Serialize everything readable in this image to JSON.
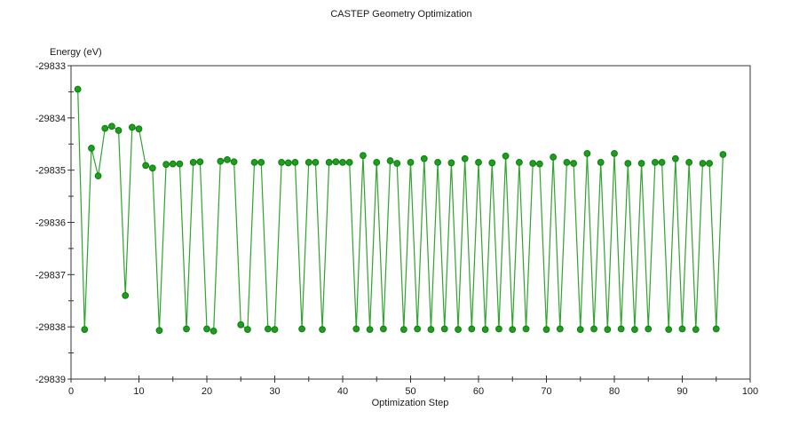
{
  "chart": {
    "title": "CASTEP Geometry Optimization",
    "y_axis_label": "Energy (eV)",
    "x_axis_label": "Optimization Step"
  },
  "colors": {
    "background": "#ffffff",
    "axis": "#333333",
    "text": "#1a1a1a",
    "line": "#2fa42f",
    "marker_fill": "#1e9e1e",
    "marker_stroke": "#0f7e0f"
  },
  "chart_data": {
    "type": "line",
    "title": "CASTEP Geometry Optimization",
    "xlabel": "Optimization Step",
    "ylabel": "Energy (eV)",
    "xlim": [
      0,
      100
    ],
    "ylim": [
      -29839,
      -29833
    ],
    "x_ticks": [
      0,
      10,
      20,
      30,
      40,
      50,
      60,
      70,
      80,
      90,
      100
    ],
    "y_ticks": [
      -29833,
      -29834,
      -29835,
      -29836,
      -29837,
      -29838,
      -29839
    ],
    "x_minor_ticks": [
      5,
      15,
      25,
      35,
      45,
      55,
      65,
      75,
      85,
      95
    ],
    "y_minor_ticks": [
      -29833.5,
      -29834.5,
      -29835.5,
      -29836.5,
      -29837.5,
      -29838.5
    ],
    "grid": false,
    "legend": "none",
    "marker": "circle",
    "series": [
      {
        "name": "Energy",
        "x": [
          1,
          2,
          3,
          4,
          5,
          6,
          7,
          8,
          9,
          10,
          11,
          12,
          13,
          14,
          15,
          16,
          17,
          18,
          19,
          20,
          21,
          22,
          23,
          24,
          25,
          26,
          27,
          28,
          29,
          30,
          31,
          32,
          33,
          34,
          35,
          36,
          37,
          38,
          39,
          40,
          41,
          42,
          43,
          44,
          45,
          46,
          47,
          48,
          49,
          50,
          51,
          52,
          53,
          54,
          55,
          56,
          57,
          58,
          59,
          60,
          61,
          62,
          63,
          64,
          65,
          66,
          67,
          68,
          69,
          70,
          71,
          72,
          73,
          74,
          75,
          76,
          77,
          78,
          79,
          80,
          81,
          82,
          83,
          84,
          85,
          86,
          87,
          88,
          89,
          90,
          91,
          92,
          93,
          94,
          95,
          96
        ],
        "values": [
          -29833.45,
          -29838.05,
          -29834.58,
          -29835.11,
          -29834.2,
          -29834.16,
          -29834.24,
          -29837.4,
          -29834.18,
          -29834.21,
          -29834.91,
          -29834.96,
          -29838.07,
          -29834.89,
          -29834.88,
          -29834.88,
          -29838.04,
          -29834.85,
          -29834.84,
          -29838.04,
          -29838.08,
          -29834.83,
          -29834.8,
          -29834.84,
          -29837.96,
          -29838.05,
          -29834.85,
          -29834.85,
          -29838.04,
          -29838.05,
          -29834.85,
          -29834.86,
          -29834.85,
          -29838.04,
          -29834.85,
          -29834.85,
          -29838.05,
          -29834.85,
          -29834.84,
          -29834.85,
          -29834.85,
          -29838.04,
          -29834.72,
          -29838.05,
          -29834.85,
          -29838.04,
          -29834.82,
          -29834.87,
          -29838.05,
          -29834.85,
          -29838.04,
          -29834.78,
          -29838.05,
          -29834.85,
          -29838.04,
          -29834.86,
          -29838.05,
          -29834.78,
          -29838.04,
          -29834.85,
          -29838.05,
          -29834.86,
          -29838.04,
          -29834.73,
          -29838.05,
          -29834.85,
          -29838.04,
          -29834.87,
          -29834.88,
          -29838.05,
          -29834.75,
          -29838.04,
          -29834.85,
          -29834.87,
          -29838.05,
          -29834.68,
          -29838.04,
          -29834.85,
          -29838.05,
          -29834.68,
          -29838.04,
          -29834.87,
          -29838.05,
          -29834.87,
          -29838.04,
          -29834.85,
          -29834.85,
          -29838.05,
          -29834.78,
          -29838.04,
          -29834.85,
          -29838.05,
          -29834.87,
          -29834.87,
          -29838.04,
          -29834.7
        ]
      }
    ]
  }
}
